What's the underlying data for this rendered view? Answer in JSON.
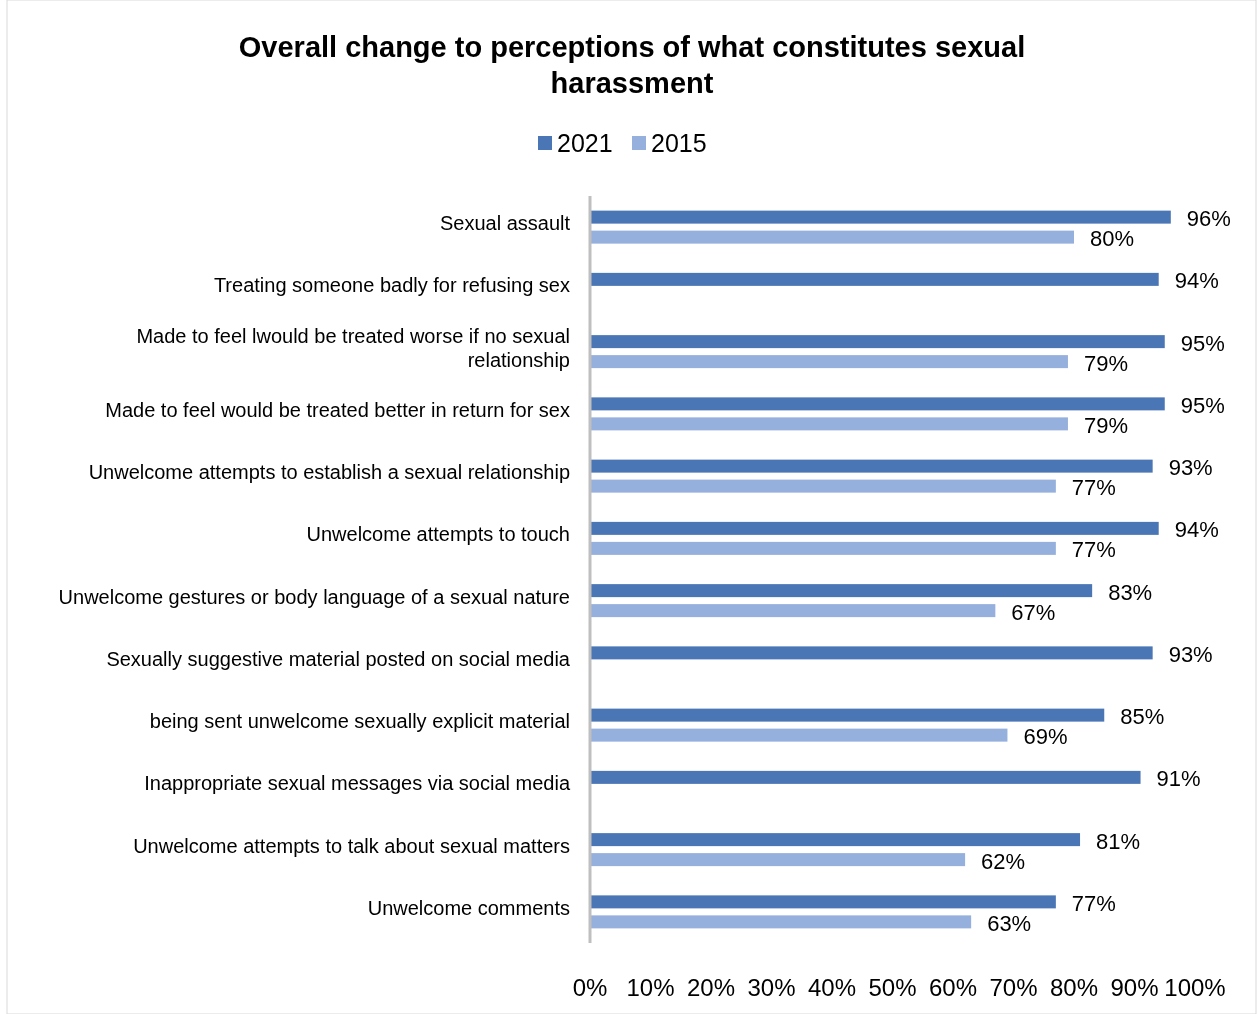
{
  "chart_data": {
    "type": "bar",
    "orientation": "horizontal",
    "title": "Overall change to perceptions of what constitutes sexual harassment",
    "categories": [
      "Sexual assault",
      "Treating someone badly for refusing sex",
      "Made to feel lwould be treated worse if no sexual relationship",
      "Made to feel would be treated better in return for sex",
      "Unwelcome attempts to establish a sexual relationship",
      "Unwelcome attempts to touch",
      "Unwelcome gestures or body language of a sexual nature",
      "Sexually suggestive material posted on social media",
      "being sent unwelcome sexually explicit material",
      "Inappropriate sexual messages via social media",
      "Unwelcome attempts to talk about sexual matters",
      "Unwelcome comments"
    ],
    "series": [
      {
        "name": "2021",
        "color": "#4a76b5",
        "values": [
          96,
          94,
          95,
          95,
          93,
          94,
          83,
          93,
          85,
          91,
          81,
          77
        ],
        "value_labels": [
          "96%",
          "94%",
          "95%",
          "95%",
          "93%",
          "94%",
          "83%",
          "93%",
          "85%",
          "91%",
          "81%",
          "77%"
        ]
      },
      {
        "name": "2015",
        "color": "#95b0dc",
        "values": [
          80,
          null,
          79,
          79,
          77,
          77,
          67,
          null,
          69,
          null,
          62,
          63
        ],
        "value_labels": [
          "80%",
          null,
          "79%",
          "79%",
          "77%",
          "77%",
          "67%",
          null,
          "69%",
          null,
          "62%",
          "63%"
        ]
      }
    ],
    "xlim": [
      0,
      100
    ],
    "xticks": [
      {
        "value": 0,
        "label": "0%"
      },
      {
        "value": 10,
        "label": "10%"
      },
      {
        "value": 20,
        "label": "20%"
      },
      {
        "value": 30,
        "label": "30%"
      },
      {
        "value": 40,
        "label": "40%"
      },
      {
        "value": 50,
        "label": "50%"
      },
      {
        "value": 60,
        "label": "60%"
      },
      {
        "value": 70,
        "label": "70%"
      },
      {
        "value": 80,
        "label": "80%"
      },
      {
        "value": 90,
        "label": "90%"
      },
      {
        "value": 100,
        "label": "100%"
      }
    ],
    "grid": false,
    "legend": "top"
  }
}
